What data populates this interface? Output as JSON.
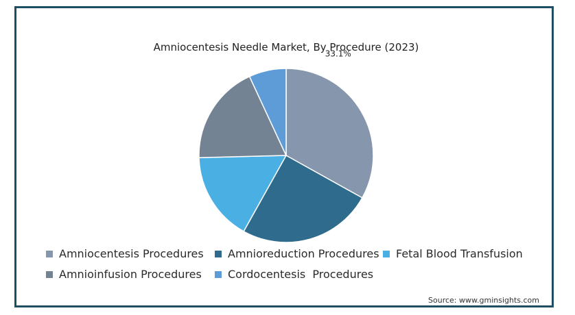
{
  "chart_data": {
    "type": "pie",
    "title": "Amniocentesis Needle Market, By Procedure (2023)",
    "slices": [
      {
        "label": "Amniocentesis Procedures",
        "value": 33.1,
        "color": "#8596ad",
        "data_label": "33.1%"
      },
      {
        "label": "Amnioreduction Procedures",
        "value": 25.0,
        "color": "#2e6b8c",
        "data_label": ""
      },
      {
        "label": "Fetal Blood Transfusion",
        "value": 16.5,
        "color": "#4ab0e3",
        "data_label": ""
      },
      {
        "label": "Amnioinfusion Procedures",
        "value": 18.5,
        "color": "#748394",
        "data_label": ""
      },
      {
        "label": "Cordocentesis  Procedures",
        "value": 6.9,
        "color": "#5d9cd6",
        "data_label": ""
      }
    ],
    "legend_position": "bottom"
  },
  "source": "Source: www.gminsights.com"
}
